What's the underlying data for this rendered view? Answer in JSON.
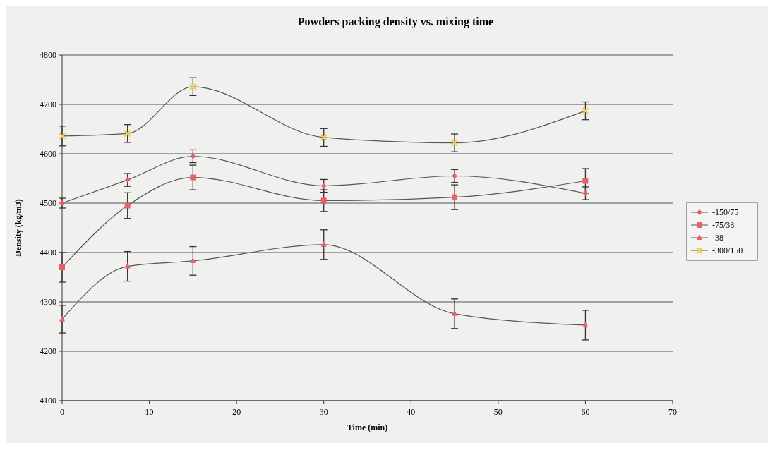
{
  "chart_data": {
    "type": "line",
    "title": "Powders packing density vs. mixing time",
    "xlabel": "Time (min)",
    "ylabel": "Density (kg/m3)",
    "x": [
      0,
      7.5,
      15,
      30,
      45,
      60
    ],
    "series": [
      {
        "name": "-150/75",
        "color": "#e8606a",
        "marker": "diamond",
        "values": [
          4500,
          4547,
          4595,
          4535,
          4555,
          4520
        ],
        "errors": [
          10,
          13,
          13,
          13,
          13,
          13
        ]
      },
      {
        "name": "-75/38",
        "color": "#e8606a",
        "marker": "square",
        "values": [
          4370,
          4495,
          4552,
          4505,
          4512,
          4545
        ],
        "errors": [
          30,
          26,
          25,
          22,
          25,
          25
        ]
      },
      {
        "name": "-38",
        "color": "#e8606a",
        "marker": "triangle",
        "values": [
          4265,
          4372,
          4383,
          4416,
          4276,
          4253
        ],
        "errors": [
          28,
          30,
          29,
          30,
          30,
          30
        ]
      },
      {
        "name": "-300/150",
        "color": "#f2cf5b",
        "marker": "cross",
        "values": [
          4636,
          4641,
          4736,
          4633,
          4622,
          4687
        ],
        "errors": [
          20,
          18,
          18,
          18,
          18,
          18
        ]
      }
    ],
    "xlim": [
      0,
      70
    ],
    "xticks": [
      0,
      10,
      20,
      30,
      40,
      50,
      60,
      70
    ],
    "ylim": [
      4100,
      4800
    ],
    "yticks": [
      4100,
      4200,
      4300,
      4400,
      4500,
      4600,
      4700,
      4800
    ],
    "grid": "y",
    "legend": "right",
    "line_style": "solid"
  }
}
